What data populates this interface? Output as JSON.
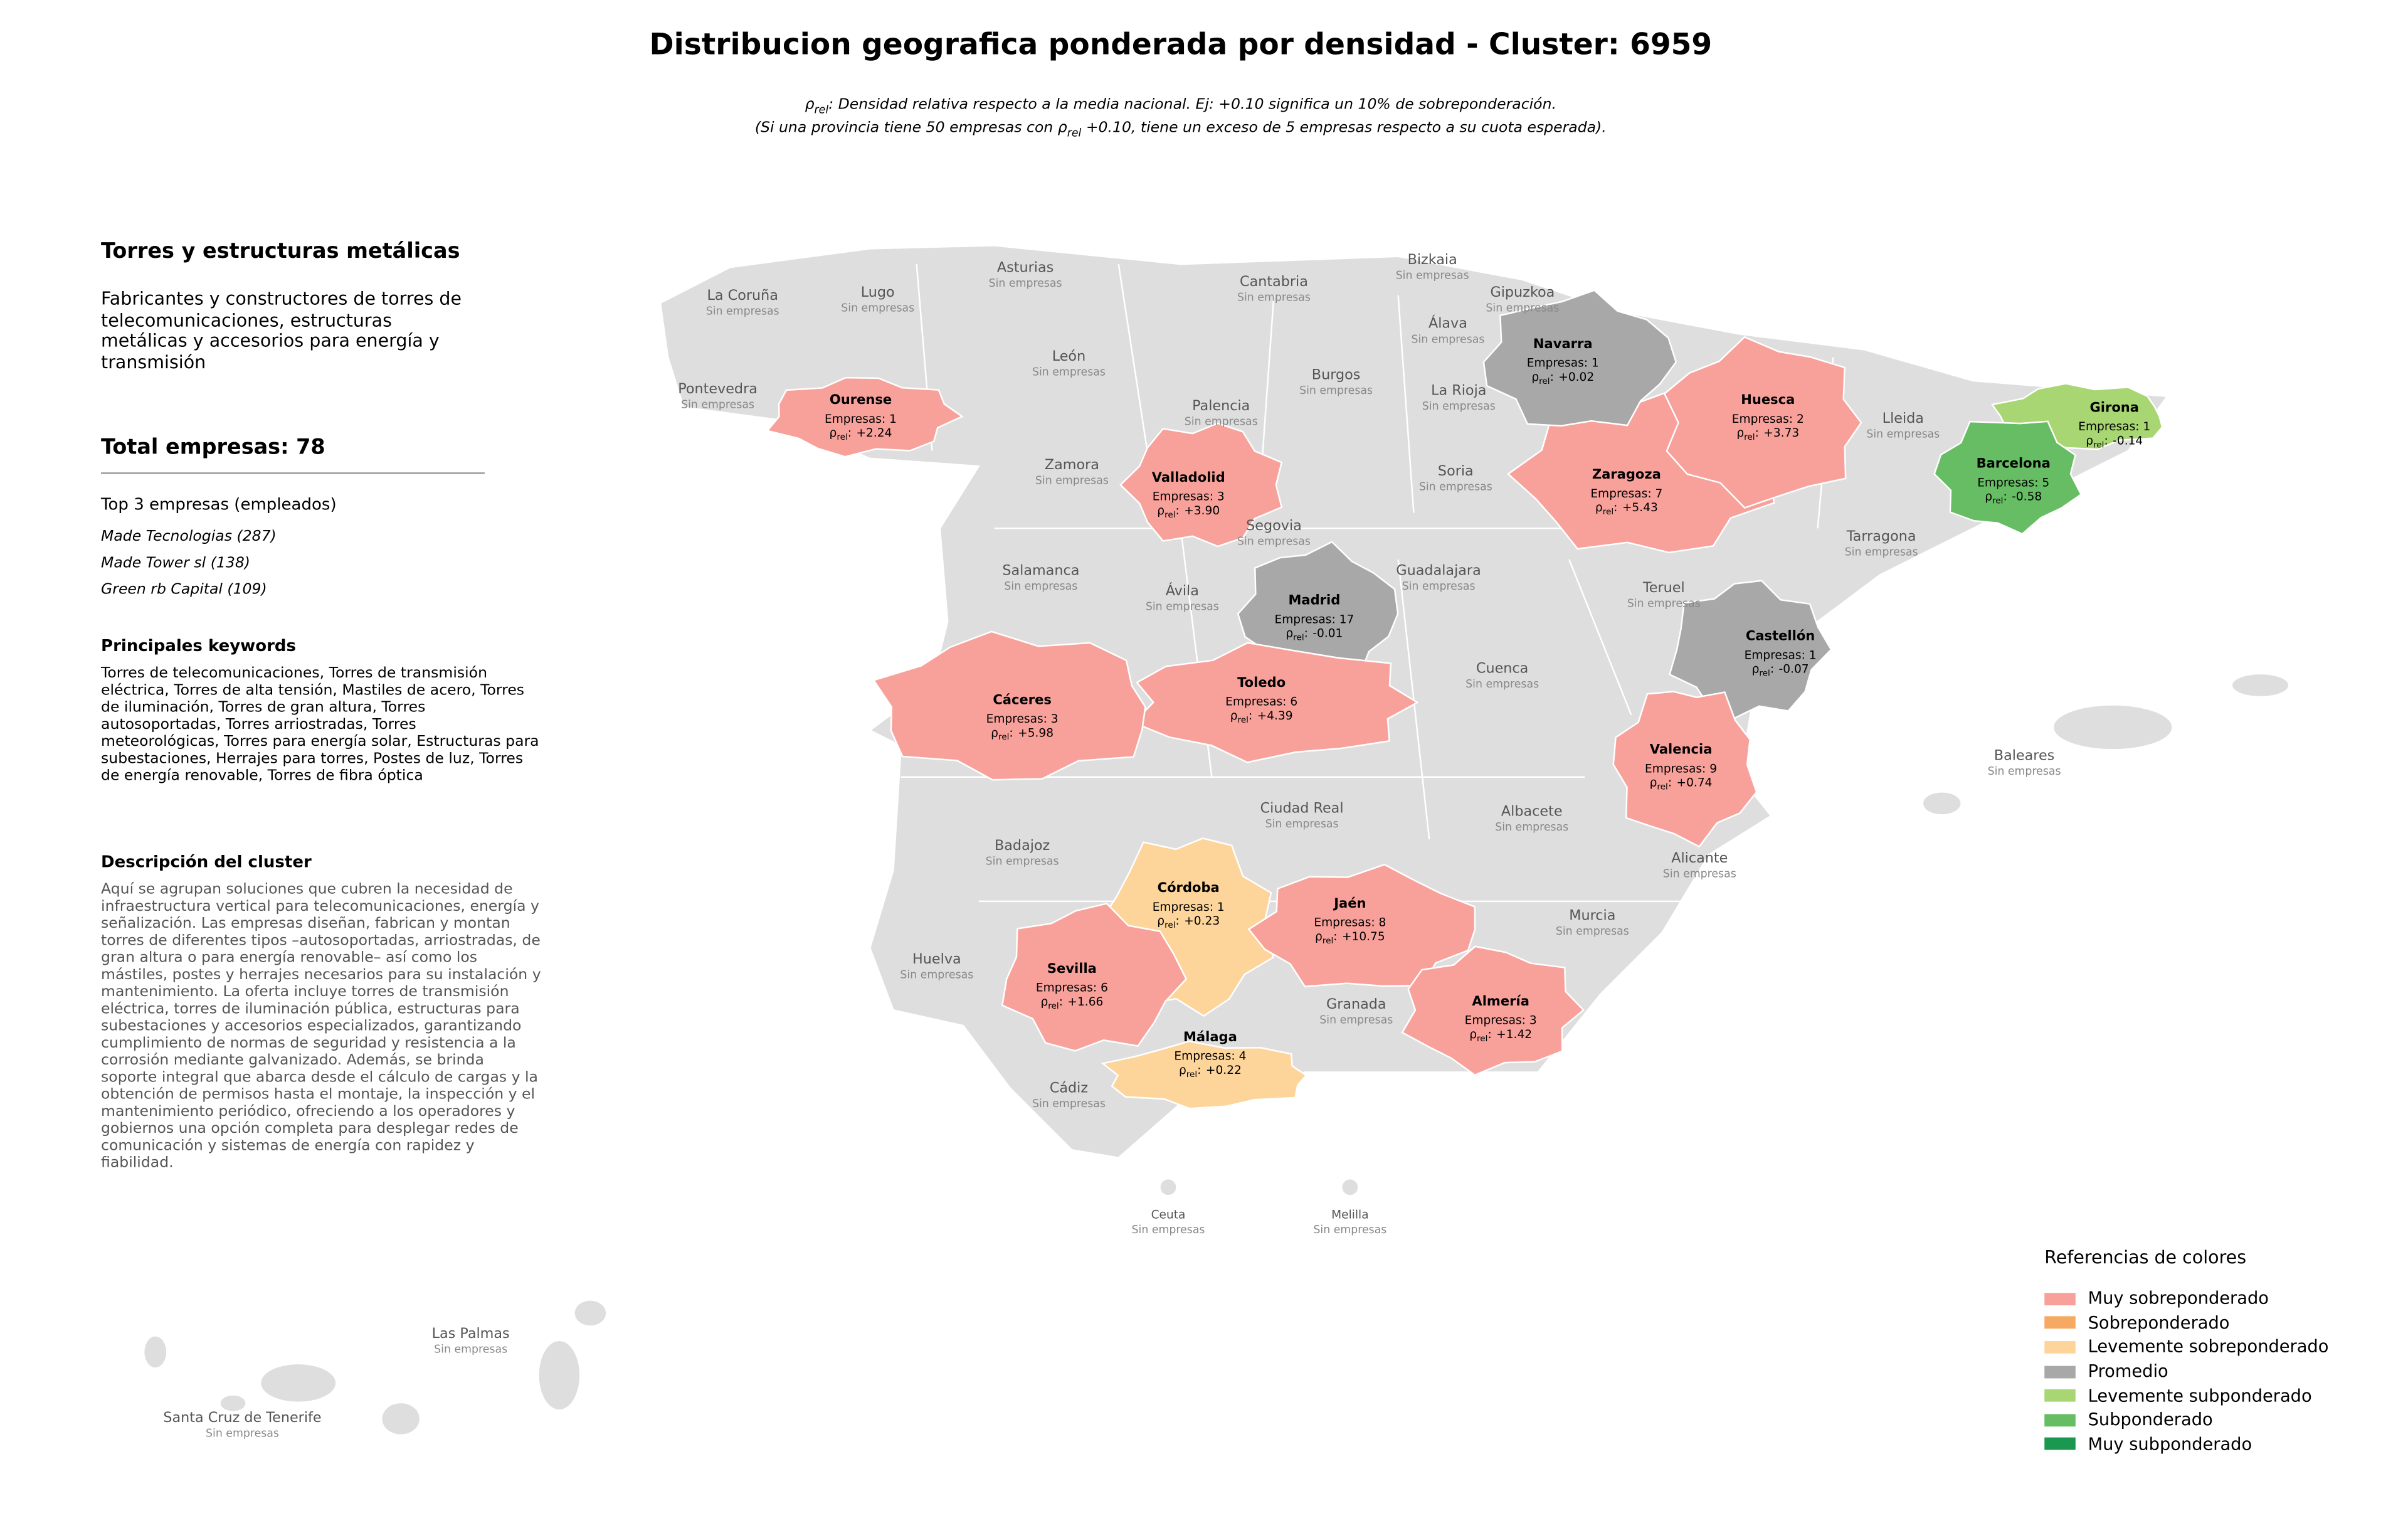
{
  "title": "Distribucion geografica ponderada por densidad - Cluster: 6959",
  "subtitle_lines": [
    [
      {
        "text": "ρ"
      },
      {
        "text": "rel",
        "sub": true
      },
      {
        "text": ": Densidad relativa respecto a la media nacional. Ej: +0.10 significa un 10% de sobreponderación."
      }
    ],
    [
      {
        "text": "(Si una provincia tiene 50 empresas con "
      },
      {
        "text": "ρ"
      },
      {
        "text": "rel",
        "sub": true
      },
      {
        "text": " +0.10, tiene un exceso de 5 empresas respecto a su cuota esperada)."
      }
    ]
  ],
  "sidebar": {
    "heading": "Torres y estructuras metálicas",
    "description": "Fabricantes y constructores de torres de telecomunicaciones, estructuras metálicas y accesorios para energía y transmisión",
    "total": "Total empresas: 78",
    "top_heading": "Top 3 empresas (empleados)",
    "top_companies": [
      "Made Tecnologias (287)",
      "Made Tower sl (138)",
      "Green rb Capital (109)"
    ],
    "keywords_heading": "Principales keywords",
    "keywords": "Torres de telecomunicaciones, Torres de transmisión eléctrica, Torres de alta tensión, Mastiles de acero, Torres de iluminación, Torres de gran altura, Torres autosoportadas, Torres arriostradas, Torres meteorológicas, Torres para energía solar, Estructuras para subestaciones, Herrajes para torres, Postes de luz, Torres de energía renovable, Torres de fibra óptica",
    "cluster_heading": "Descripción del cluster",
    "cluster_description": "Aquí se agrupan soluciones que cubren la necesidad de infraestructura vertical para telecomunicaciones, energía y señalización. Las empresas diseñan, fabrican y montan torres de diferentes tipos –autosoportadas, arriostradas, de gran altura o para energía renovable– así como los mástiles, postes y herrajes necesarios para su instalación y mantenimiento. La oferta incluye torres de transmisión eléctrica, torres de iluminación pública, estructuras para subestaciones y accesorios especializados, garantizando cumplimiento de normas de seguridad y resistencia a la corrosión mediante galvanizado. Además, se brinda soporte integral que abarca desde el cálculo de cargas y la obtención de permisos hasta el montaje, la inspección y el mantenimiento periódico, ofreciendo a los operadores y gobiernos una opción completa para desplegar redes de comunicación y sistemas de energía con rapidez y fiabilidad."
  },
  "map": {
    "no_companies_label": "Sin empresas",
    "rho": {
      "symbol": "ρ",
      "sub": "rel",
      "sep": ":"
    },
    "inactive": [
      "La Coruña",
      "Lugo",
      "Asturias",
      "Cantabria",
      "Bizkaia",
      "Gipuzkoa",
      "Álava",
      "Pontevedra",
      "León",
      "Burgos",
      "La Rioja",
      "Palencia",
      "Zamora",
      "Soria",
      "Lleida",
      "Segovia",
      "Tarragona",
      "Salamanca",
      "Ávila",
      "Guadalajara",
      "Teruel",
      "Cuenca",
      "Baleares",
      "Ciudad Real",
      "Albacete",
      "Badajoz",
      "Alicante",
      "Murcia",
      "Huelva",
      "Granada",
      "Cádiz",
      "Ceuta",
      "Melilla",
      "Las Palmas",
      "Santa Cruz de Tenerife"
    ],
    "provinces": [
      {
        "name": "Zaragoza",
        "empresas": "Empresas: 7",
        "rho": "+5.43",
        "color": "#f8a19b"
      },
      {
        "name": "Navarra",
        "empresas": "Empresas: 1",
        "rho": "+0.02",
        "color": "#a8a8a8"
      },
      {
        "name": "Ourense",
        "empresas": "Empresas: 1",
        "rho": "+2.24",
        "color": "#f8a19b"
      },
      {
        "name": "Huesca",
        "empresas": "Empresas: 2",
        "rho": "+3.73",
        "color": "#f8a19b"
      },
      {
        "name": "Girona",
        "empresas": "Empresas: 1",
        "rho": "-0.14",
        "color": "#a8d672"
      },
      {
        "name": "Barcelona",
        "empresas": "Empresas: 5",
        "rho": "-0.58",
        "color": "#66bd63"
      },
      {
        "name": "Valladolid",
        "empresas": "Empresas: 3",
        "rho": "+3.90",
        "color": "#f8a19b"
      },
      {
        "name": "Madrid",
        "empresas": "Empresas: 17",
        "rho": "-0.01",
        "color": "#a8a8a8"
      },
      {
        "name": "Castellón",
        "empresas": "Empresas: 1",
        "rho": "-0.07",
        "color": "#a8a8a8"
      },
      {
        "name": "Toledo",
        "empresas": "Empresas: 6",
        "rho": "+4.39",
        "color": "#f8a19b"
      },
      {
        "name": "Cáceres",
        "empresas": "Empresas: 3",
        "rho": "+5.98",
        "color": "#f8a19b"
      },
      {
        "name": "Valencia",
        "empresas": "Empresas: 9",
        "rho": "+0.74",
        "color": "#f8a19b"
      },
      {
        "name": "Córdoba",
        "empresas": "Empresas: 1",
        "rho": "+0.23",
        "color": "#fdd59b"
      },
      {
        "name": "Jaén",
        "empresas": "Empresas: 8",
        "rho": "+10.75",
        "color": "#f8a19b"
      },
      {
        "name": "Sevilla",
        "empresas": "Empresas: 6",
        "rho": "+1.66",
        "color": "#f8a19b"
      },
      {
        "name": "Almería",
        "empresas": "Empresas: 3",
        "rho": "+1.42",
        "color": "#f8a19b"
      },
      {
        "name": "Málaga",
        "empresas": "Empresas: 4",
        "rho": "+0.22",
        "color": "#fdd59b"
      }
    ]
  },
  "legend": {
    "title": "Referencias de colores",
    "items": [
      {
        "label": "Muy sobreponderado",
        "color": "#f8a19b"
      },
      {
        "label": "Sobreponderado",
        "color": "#f5a962"
      },
      {
        "label": "Levemente sobreponderado",
        "color": "#fdd59b"
      },
      {
        "label": "Promedio",
        "color": "#a8a8a8"
      },
      {
        "label": "Levemente subponderado",
        "color": "#a8d672"
      },
      {
        "label": "Subponderado",
        "color": "#66bd63"
      },
      {
        "label": "Muy subponderado",
        "color": "#1a9850"
      }
    ]
  }
}
